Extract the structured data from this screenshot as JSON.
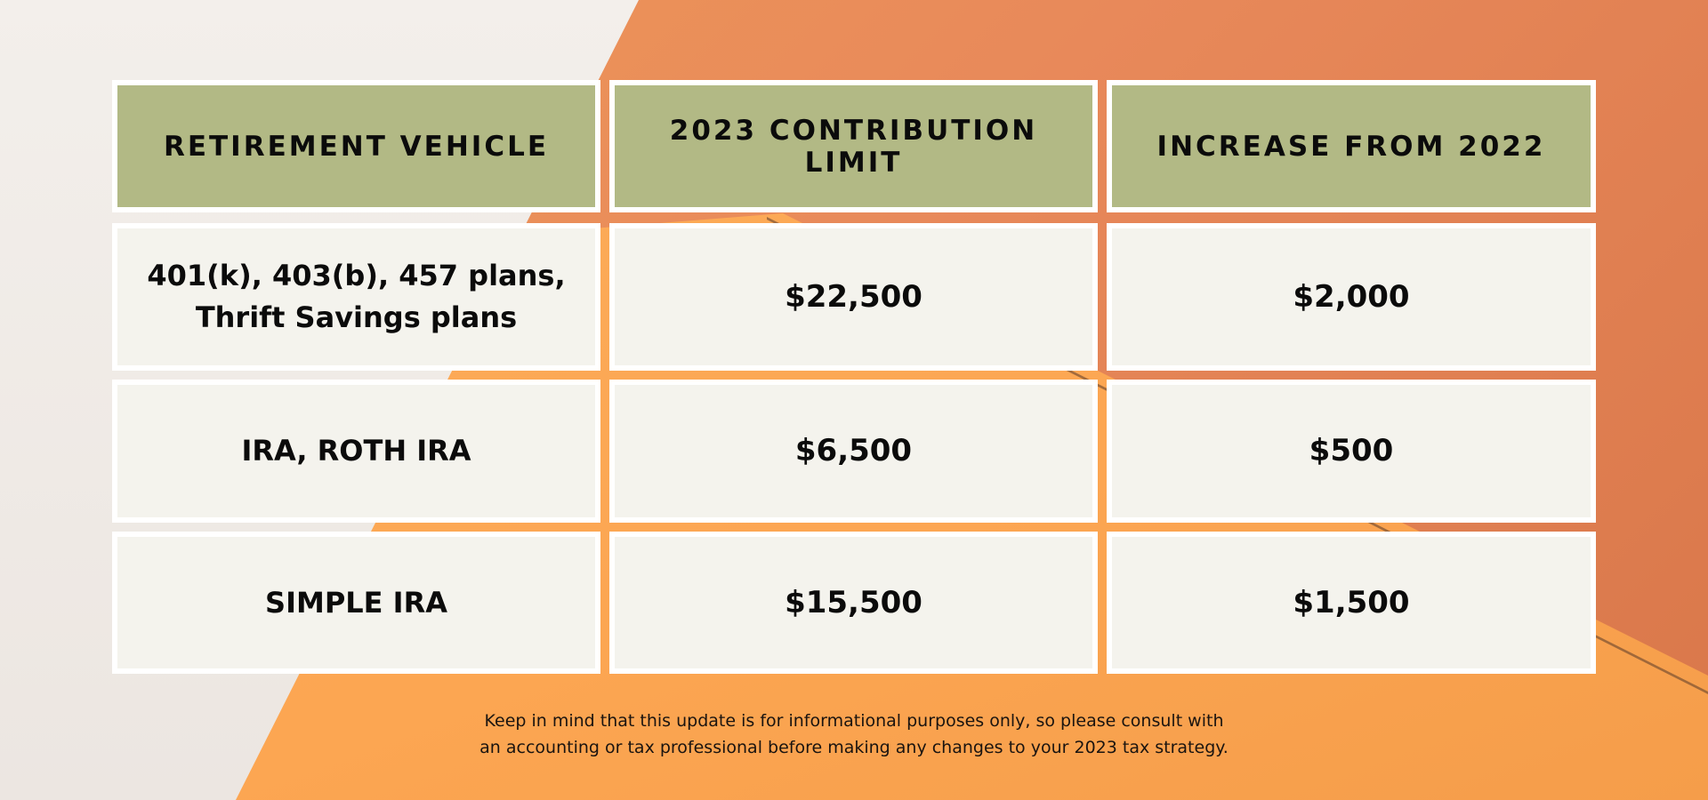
{
  "table": {
    "headers": [
      "RETIREMENT VEHICLE",
      "2023 CONTRIBUTION LIMIT",
      "INCREASE FROM 2022"
    ],
    "rows": [
      {
        "vehicle": "401(k), 403(b), 457 plans,\nThrift Savings plans",
        "limit": "$22,500",
        "increase": "$2,000"
      },
      {
        "vehicle": "IRA, ROTH IRA",
        "limit": "$6,500",
        "increase": "$500"
      },
      {
        "vehicle": "SIMPLE IRA",
        "limit": "$15,500",
        "increase": "$1,500"
      }
    ]
  },
  "note": "Keep in mind that this update is for informational purposes only, so please consult with\nan accounting or tax professional before making any changes to your 2023 tax strategy.",
  "colors": {
    "header_bg": "#b2b985",
    "cell_bg": "#f4f3ed",
    "border": "#ffffff",
    "background_orange": "#fca652",
    "background_terracotta": "#d9774a"
  }
}
